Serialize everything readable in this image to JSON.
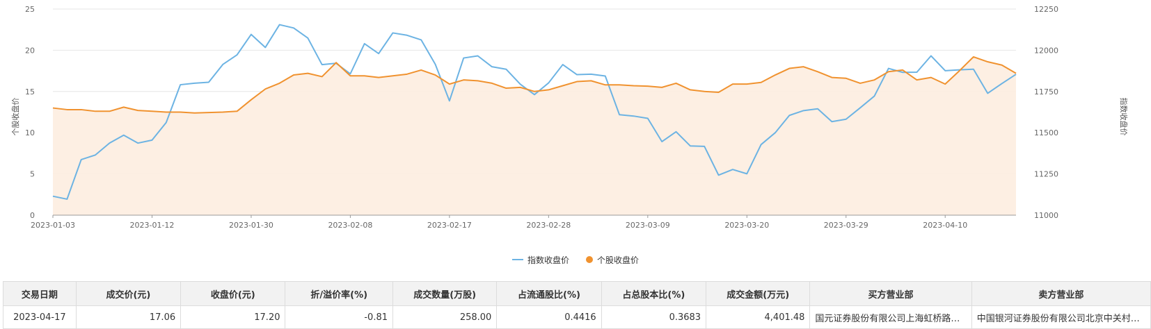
{
  "chart_data": {
    "type": "line",
    "x": [
      "2023-01-03",
      "2023-01-04",
      "2023-01-05",
      "2023-01-06",
      "2023-01-09",
      "2023-01-10",
      "2023-01-11",
      "2023-01-12",
      "2023-01-13",
      "2023-01-16",
      "2023-01-17",
      "2023-01-18",
      "2023-01-19",
      "2023-01-20",
      "2023-01-30",
      "2023-01-31",
      "2023-02-01",
      "2023-02-02",
      "2023-02-03",
      "2023-02-06",
      "2023-02-07",
      "2023-02-08",
      "2023-02-09",
      "2023-02-10",
      "2023-02-13",
      "2023-02-14",
      "2023-02-15",
      "2023-02-16",
      "2023-02-17",
      "2023-02-20",
      "2023-02-21",
      "2023-02-22",
      "2023-02-23",
      "2023-02-24",
      "2023-02-27",
      "2023-02-28",
      "2023-03-01",
      "2023-03-02",
      "2023-03-03",
      "2023-03-06",
      "2023-03-07",
      "2023-03-08",
      "2023-03-09",
      "2023-03-10",
      "2023-03-13",
      "2023-03-14",
      "2023-03-15",
      "2023-03-16",
      "2023-03-17",
      "2023-03-20",
      "2023-03-21",
      "2023-03-22",
      "2023-03-23",
      "2023-03-24",
      "2023-03-27",
      "2023-03-28",
      "2023-03-29",
      "2023-03-30",
      "2023-03-31",
      "2023-04-03",
      "2023-04-04",
      "2023-04-06",
      "2023-04-07",
      "2023-04-10",
      "2023-04-11",
      "2023-04-12",
      "2023-04-13",
      "2023-04-14",
      "2023-04-17"
    ],
    "x_ticks": [
      "2023-01-03",
      "2023-01-12",
      "2023-01-30",
      "2023-02-08",
      "2023-02-17",
      "2023-02-28",
      "2023-03-09",
      "2023-03-20",
      "2023-03-29",
      "2023-04-10"
    ],
    "series": [
      {
        "name": "指数收盘价",
        "axis": "right",
        "color": "#6cb3e3",
        "values": [
          11115,
          11097,
          11337,
          11365,
          11437,
          11485,
          11437,
          11455,
          11562,
          11791,
          11800,
          11806,
          11914,
          11972,
          12096,
          12017,
          12155,
          12135,
          12074,
          11913,
          11921,
          11857,
          12040,
          11980,
          12105,
          12091,
          12063,
          11915,
          11693,
          11953,
          11966,
          11900,
          11885,
          11794,
          11731,
          11802,
          11913,
          11852,
          11855,
          11844,
          11609,
          11601,
          11587,
          11446,
          11506,
          11420,
          11417,
          11243,
          11277,
          11251,
          11428,
          11500,
          11605,
          11634,
          11645,
          11567,
          11582,
          11651,
          11722,
          11890,
          11866,
          11867,
          11966,
          11876,
          11881,
          11885,
          11739,
          11798,
          11854
        ]
      },
      {
        "name": "个股收盘价",
        "axis": "left",
        "color": "#f0922f",
        "fill": "#fdeee2",
        "values": [
          13.0,
          12.8,
          12.8,
          12.6,
          12.6,
          13.1,
          12.7,
          12.6,
          12.5,
          12.5,
          12.4,
          12.45,
          12.5,
          12.6,
          14.0,
          15.3,
          16.0,
          17.0,
          17.2,
          16.8,
          18.5,
          16.9,
          16.9,
          16.7,
          16.9,
          17.1,
          17.6,
          17.0,
          15.9,
          16.4,
          16.3,
          16.0,
          15.4,
          15.5,
          15.0,
          15.2,
          15.7,
          16.2,
          16.3,
          15.8,
          15.8,
          15.7,
          15.65,
          15.5,
          16.0,
          15.2,
          15.0,
          14.9,
          15.9,
          15.9,
          16.1,
          17.0,
          17.8,
          18.0,
          17.4,
          16.7,
          16.6,
          16.0,
          16.4,
          17.4,
          17.6,
          16.4,
          16.7,
          15.9,
          17.5,
          19.2,
          18.6,
          18.2,
          17.2
        ]
      }
    ],
    "ylim_left": [
      0,
      25
    ],
    "ylim_right": [
      11000,
      12250
    ],
    "yticks_left": [
      "0",
      "5",
      "10",
      "15",
      "20",
      "25"
    ],
    "yticks_right": [
      "11000",
      "11250",
      "11500",
      "11750",
      "12000",
      "12250"
    ],
    "ylabel_left": "个股收盘价",
    "ylabel_right": "指数收盘价",
    "legend": "bottom-center",
    "grid": true
  },
  "legend": {
    "index_label": "指数收盘价",
    "stock_label": "个股收盘价"
  },
  "table": {
    "headers": [
      "交易日期",
      "成交价(元)",
      "收盘价(元)",
      "折/溢价率(%)",
      "成交数量(万股)",
      "占流通股比(%)",
      "占总股本比(%)",
      "成交金额(万元)",
      "买方营业部",
      "卖方营业部"
    ],
    "rows": [
      [
        "2023-04-17",
        "17.06",
        "17.20",
        "-0.81",
        "258.00",
        "0.4416",
        "0.3683",
        "4,401.48",
        "国元证券股份有限公司上海虹桥路证券营业部",
        "中国银河证券股份有限公司北京中关村大街证券营业部"
      ]
    ]
  }
}
